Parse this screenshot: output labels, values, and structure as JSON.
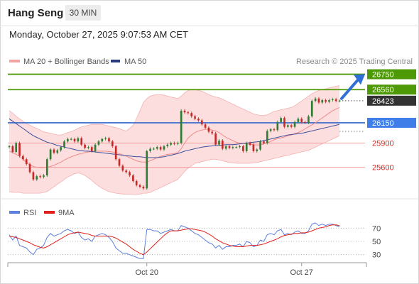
{
  "header": {
    "title": "Hang Seng",
    "timeframe": "30 MIN"
  },
  "datetime": "Monday, October 27, 2025 9:07:53 AM CET",
  "legend": {
    "bollinger_label": "MA 20 + Bollinger Bands",
    "ma50_label": "MA 50",
    "credit": "Research © 2025 Trading Central",
    "rsi_label": "RSI",
    "rsi_ma_label": "9MA"
  },
  "colors": {
    "green": "#4e9a06",
    "blue": "#4a78d0",
    "red": "#e0201c",
    "band": "#fbd3d3",
    "candle_up": "#2e7d32",
    "candle_down": "#c62828",
    "current": "#333333",
    "rsi": "#5b7fde",
    "rsi_ma": "#e0201c"
  },
  "chart_data": [
    {
      "type": "candlestick",
      "title": "Hang Seng",
      "timeframe": "30 MIN",
      "ylim": [
        25255,
        26825
      ],
      "x_tick_labels": [
        {
          "label": "Oct 20",
          "index": 40
        },
        {
          "label": "Oct 27",
          "index": 85
        }
      ],
      "bar_count": 97,
      "key_levels": [
        {
          "value": 26750,
          "label": "26750",
          "style": "green"
        },
        {
          "value": 26560,
          "label": "26560",
          "style": "green"
        },
        {
          "value": 26423,
          "label": "26423",
          "style": "current"
        },
        {
          "value": 26150,
          "label": "26150",
          "style": "blue"
        },
        {
          "value": 25900,
          "label": "25900",
          "style": "red"
        },
        {
          "value": 25600,
          "label": "25600",
          "style": "red"
        }
      ],
      "series": [
        {
          "name": "MA 20 + Bollinger Bands",
          "role": "ma20"
        },
        {
          "name": "MA 50",
          "role": "ma50"
        }
      ],
      "close": [
        25860,
        25790,
        25900,
        25740,
        25700,
        25640,
        25540,
        25450,
        25490,
        25480,
        25500,
        25700,
        25820,
        25780,
        25810,
        25850,
        25920,
        25950,
        25950,
        25920,
        25960,
        25880,
        25840,
        25850,
        25800,
        25880,
        25920,
        25950,
        25960,
        25920,
        25860,
        25700,
        25620,
        25560,
        25540,
        25500,
        25430,
        25380,
        25360,
        25340,
        25800,
        25830,
        25830,
        25850,
        25820,
        25860,
        25880,
        25900,
        25890,
        25900,
        26300,
        26280,
        26270,
        26230,
        26200,
        26180,
        26130,
        26090,
        26040,
        26020,
        25880,
        25930,
        25830,
        25860,
        25840,
        25850,
        25850,
        25860,
        25800,
        25900,
        25880,
        25800,
        25820,
        25920,
        25900,
        26050,
        26070,
        26060,
        26160,
        26210,
        26100,
        26120,
        26100,
        26160,
        26200,
        26160,
        26150,
        26230,
        26420,
        26450,
        26400,
        26430,
        26410,
        26430,
        26440,
        26420,
        26423
      ],
      "ma20": [
        25800,
        25780,
        25760,
        25740,
        25700,
        25660,
        25630,
        25610,
        25600,
        25595,
        25595,
        25600,
        25610,
        25625,
        25645,
        25665,
        25690,
        25710,
        25730,
        25745,
        25760,
        25770,
        25780,
        25790,
        25795,
        25800,
        25800,
        25800,
        25800,
        25795,
        25790,
        25780,
        25770,
        25755,
        25740,
        25720,
        25700,
        25680,
        25670,
        25665,
        25665,
        25680,
        25700,
        25720,
        25735,
        25750,
        25760,
        25765,
        25770,
        25780,
        25830,
        25900,
        25960,
        26000,
        26030,
        26050,
        26060,
        26070,
        26070,
        26060,
        26050,
        26030,
        26000,
        25970,
        25950,
        25930,
        25910,
        25900,
        25895,
        25890,
        25885,
        25880,
        25875,
        25880,
        25890,
        25900,
        25920,
        25940,
        25955,
        25965,
        25975,
        25990,
        26000,
        26015,
        26030,
        26050,
        26075,
        26100,
        26125,
        26150,
        26180,
        26210,
        26240,
        26270,
        26300,
        26320,
        26340
      ],
      "bb_upper": [
        26300,
        26270,
        26230,
        26200,
        26170,
        26140,
        26120,
        26100,
        26080,
        26060,
        26040,
        26030,
        26020,
        26010,
        26000,
        26000,
        26010,
        26030,
        26040,
        26060,
        26080,
        26100,
        26110,
        26120,
        26130,
        26130,
        26130,
        26130,
        26120,
        26110,
        26100,
        26090,
        26080,
        26060,
        26050,
        26080,
        26120,
        26200,
        26300,
        26400,
        26450,
        26480,
        26490,
        26500,
        26500,
        26490,
        26480,
        26470,
        26460,
        26450,
        26480,
        26520,
        26550,
        26560,
        26560,
        26550,
        26540,
        26520,
        26500,
        26480,
        26470,
        26460,
        26440,
        26420,
        26400,
        26380,
        26360,
        26340,
        26320,
        26300,
        26280,
        26260,
        26250,
        26240,
        26240,
        26250,
        26270,
        26290,
        26300,
        26310,
        26320,
        26330,
        26340,
        26360,
        26390,
        26420,
        26450,
        26480,
        26510,
        26530,
        26550,
        26560,
        26570,
        26580,
        26590,
        26600,
        26610
      ],
      "bb_lower": [
        25300,
        25290,
        25290,
        25290,
        25280,
        25280,
        25280,
        25280,
        25280,
        25280,
        25290,
        25300,
        25330,
        25360,
        25390,
        25420,
        25450,
        25480,
        25500,
        25520,
        25530,
        25520,
        25500,
        25470,
        25440,
        25400,
        25370,
        25340,
        25320,
        25300,
        25290,
        25280,
        25275,
        25270,
        25270,
        25268,
        25265,
        25265,
        25270,
        25280,
        25280,
        25290,
        25310,
        25330,
        25350,
        25370,
        25390,
        25410,
        25430,
        25450,
        25500,
        25550,
        25590,
        25620,
        25650,
        25660,
        25670,
        25680,
        25690,
        25700,
        25700,
        25690,
        25680,
        25670,
        25660,
        25655,
        25650,
        25650,
        25650,
        25650,
        25650,
        25655,
        25660,
        25670,
        25680,
        25690,
        25700,
        25710,
        25720,
        25730,
        25740,
        25750,
        25760,
        25770,
        25780,
        25790,
        25800,
        25810,
        25830,
        25850,
        25870,
        25890,
        25910,
        25930,
        25950,
        25970,
        25990
      ],
      "ma50": [
        26200,
        26170,
        26140,
        26110,
        26080,
        26050,
        26020,
        25990,
        25970,
        25950,
        25930,
        25910,
        25900,
        25885,
        25870,
        25860,
        25850,
        25840,
        25830,
        25820,
        25810,
        25805,
        25800,
        25800,
        25795,
        25790,
        25785,
        25780,
        25775,
        25770,
        25765,
        25760,
        25755,
        25750,
        25745,
        25740,
        25735,
        25730,
        25730,
        25725,
        25720,
        25720,
        25720,
        25720,
        25725,
        25730,
        25740,
        25750,
        25760,
        25770,
        25785,
        25800,
        25810,
        25820,
        25830,
        25840,
        25850,
        25855,
        25860,
        25865,
        25870,
        25870,
        25875,
        25880,
        25880,
        25880,
        25885,
        25890,
        25895,
        25900,
        25905,
        25910,
        25915,
        25920,
        25930,
        25940,
        25950,
        25960,
        25970,
        25980,
        25990,
        26000,
        26005,
        26010,
        26015,
        26020,
        26030,
        26040,
        26050,
        26060,
        26070,
        26080,
        26090,
        26100,
        26110,
        26120,
        26130
      ]
    },
    {
      "type": "line",
      "title": "RSI",
      "ylim": [
        20,
        80
      ],
      "y_ticks": [
        30,
        50,
        70
      ],
      "series": [
        {
          "name": "RSI",
          "values": [
            60,
            52,
            58,
            44,
            42,
            40,
            34,
            30,
            38,
            40,
            44,
            56,
            62,
            58,
            60,
            62,
            66,
            68,
            66,
            62,
            64,
            56,
            52,
            54,
            50,
            58,
            60,
            62,
            60,
            56,
            50,
            40,
            36,
            32,
            32,
            30,
            28,
            26,
            24,
            24,
            68,
            68,
            66,
            66,
            62,
            64,
            66,
            68,
            66,
            66,
            74,
            72,
            70,
            66,
            62,
            60,
            56,
            52,
            48,
            46,
            40,
            44,
            38,
            42,
            42,
            44,
            44,
            46,
            42,
            50,
            48,
            42,
            44,
            52,
            50,
            60,
            62,
            60,
            66,
            68,
            60,
            62,
            60,
            64,
            66,
            62,
            62,
            66,
            76,
            78,
            74,
            76,
            74,
            76,
            76,
            74,
            72
          ]
        },
        {
          "name": "9MA",
          "values": [
            58,
            57,
            56,
            54,
            52,
            50,
            48,
            45,
            43,
            41,
            40,
            42,
            45,
            48,
            51,
            54,
            57,
            60,
            62,
            63,
            64,
            63,
            62,
            61,
            59,
            58,
            58,
            58,
            58,
            58,
            57,
            55,
            52,
            49,
            46,
            42,
            38,
            35,
            32,
            30,
            34,
            39,
            44,
            49,
            54,
            59,
            63,
            66,
            66,
            66,
            67,
            68,
            69,
            69,
            68,
            67,
            66,
            64,
            61,
            58,
            54,
            51,
            48,
            46,
            44,
            43,
            42,
            42,
            42,
            43,
            44,
            44,
            44,
            45,
            46,
            48,
            50,
            52,
            54,
            57,
            59,
            60,
            61,
            62,
            62,
            63,
            63,
            64,
            66,
            68,
            70,
            71,
            72,
            74,
            75,
            75,
            74
          ]
        }
      ]
    }
  ]
}
